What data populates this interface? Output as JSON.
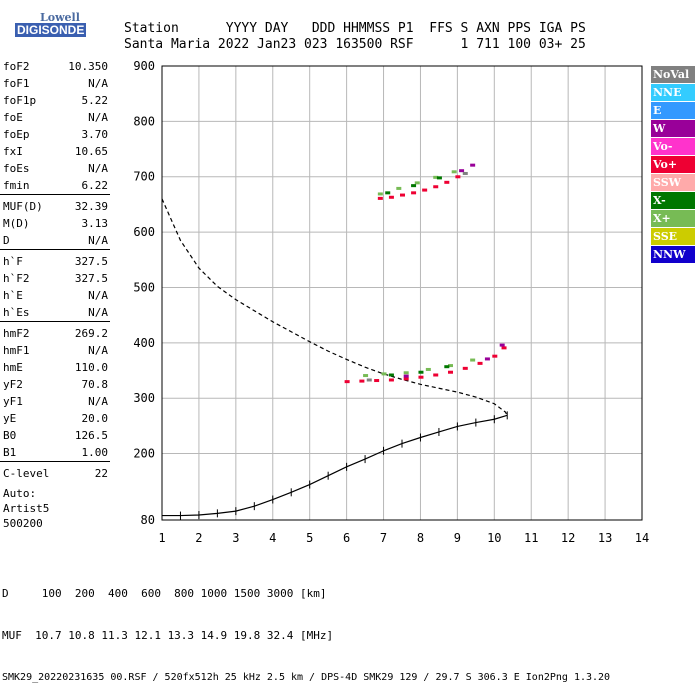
{
  "logo": {
    "line1": "Lowell",
    "line2": "DIGISONDE"
  },
  "header": {
    "line1": "Station      YYYY DAY   DDD HHMMSS P1  FFS S AXN PPS IGA PS",
    "line2": "Santa Maria 2022 Jan23 023 163500 RSF      1 711 100 03+ 25"
  },
  "params": [
    {
      "label": "foF2",
      "value": "10.350"
    },
    {
      "label": "foF1",
      "value": "N/A"
    },
    {
      "label": "foF1p",
      "value": "5.22"
    },
    {
      "label": "foE",
      "value": "N/A"
    },
    {
      "label": "foEp",
      "value": "3.70"
    },
    {
      "label": "fxI",
      "value": "10.65"
    },
    {
      "label": "foEs",
      "value": "N/A"
    },
    {
      "label": "fmin",
      "value": "6.22"
    },
    {
      "label": "MUF(D)",
      "value": "32.39"
    },
    {
      "label": "M(D)",
      "value": "3.13"
    },
    {
      "label": "D",
      "value": "N/A"
    },
    {
      "label": "h`F",
      "value": "327.5"
    },
    {
      "label": "h`F2",
      "value": "327.5"
    },
    {
      "label": "h`E",
      "value": "N/A"
    },
    {
      "label": "h`Es",
      "value": "N/A"
    },
    {
      "label": "hmF2",
      "value": "269.2"
    },
    {
      "label": "hmF1",
      "value": "N/A"
    },
    {
      "label": "hmE",
      "value": "110.0"
    },
    {
      "label": "yF2",
      "value": "70.8"
    },
    {
      "label": "yF1",
      "value": "N/A"
    },
    {
      "label": "yE",
      "value": "20.0"
    },
    {
      "label": "B0",
      "value": "126.5"
    },
    {
      "label": "B1",
      "value": "1.00"
    },
    {
      "label": "C-level",
      "value": "22"
    }
  ],
  "autoscale": {
    "line1": "Auto:",
    "line2": "Artist5",
    "line3": "500200"
  },
  "legend": [
    {
      "label": "NoVal",
      "color": "#808080"
    },
    {
      "label": "NNE",
      "color": "#33ccff"
    },
    {
      "label": "E",
      "color": "#3399ff"
    },
    {
      "label": "W",
      "color": "#990099"
    },
    {
      "label": "Vo-",
      "color": "#ff33cc"
    },
    {
      "label": "Vo+",
      "color": "#ee0033"
    },
    {
      "label": "SSW",
      "color": "#ffaaaa"
    },
    {
      "label": "X-",
      "color": "#007700"
    },
    {
      "label": "X+",
      "color": "#77bb55"
    },
    {
      "label": "SSE",
      "color": "#cccc00"
    },
    {
      "label": "NNW",
      "color": "#1100cc"
    }
  ],
  "footer": {
    "line1": "D     100  200  400  600  800 1000 1500 3000 [km]",
    "line2": "MUF  10.7 10.8 11.3 12.1 13.3 14.9 19.8 32.4 [MHz]",
    "line3": "SMK29_20220231635 00.RSF / 520fx512h 25 kHz 2.5 km / DPS-4D SMK29 129 / 29.7 S 306.3 E Ion2Png 1.3.20"
  },
  "chart_data": {
    "type": "scatter",
    "title": "",
    "xlabel": "",
    "ylabel": "",
    "xlim": [
      1,
      14
    ],
    "ylim": [
      80,
      900
    ],
    "x_ticks": [
      1,
      2,
      3,
      4,
      5,
      6,
      7,
      8,
      9,
      10,
      11,
      12,
      13,
      14
    ],
    "y_ticks": [
      80,
      200,
      300,
      400,
      500,
      600,
      700,
      800,
      900
    ],
    "grid": true,
    "series": [
      {
        "name": "X+",
        "color": "#77bb55",
        "points": [
          [
            6.9,
            668
          ],
          [
            7.4,
            678
          ],
          [
            7.9,
            688
          ],
          [
            8.4,
            698
          ],
          [
            8.9,
            708
          ],
          [
            6.5,
            340
          ],
          [
            7.0,
            343
          ],
          [
            7.6,
            345
          ],
          [
            8.2,
            351
          ],
          [
            8.8,
            358
          ],
          [
            9.4,
            368
          ]
        ]
      },
      {
        "name": "X-",
        "color": "#007700",
        "points": [
          [
            7.1,
            670
          ],
          [
            7.8,
            683
          ],
          [
            8.5,
            697
          ],
          [
            7.2,
            341
          ],
          [
            8.0,
            346
          ],
          [
            8.7,
            356
          ]
        ]
      },
      {
        "name": "Vo+",
        "color": "#ee0033",
        "points": [
          [
            6.9,
            660
          ],
          [
            7.2,
            662
          ],
          [
            7.5,
            666
          ],
          [
            7.8,
            670
          ],
          [
            8.1,
            675
          ],
          [
            8.4,
            681
          ],
          [
            8.7,
            689
          ],
          [
            9.0,
            699
          ],
          [
            6.0,
            329
          ],
          [
            6.4,
            330
          ],
          [
            6.8,
            331
          ],
          [
            7.2,
            332
          ],
          [
            7.6,
            334
          ],
          [
            8.0,
            337
          ],
          [
            8.4,
            341
          ],
          [
            8.8,
            346
          ],
          [
            9.2,
            353
          ],
          [
            9.6,
            362
          ],
          [
            10.0,
            375
          ],
          [
            10.25,
            390
          ]
        ]
      },
      {
        "name": "W",
        "color": "#990099",
        "points": [
          [
            9.1,
            710
          ],
          [
            9.4,
            720
          ],
          [
            7.6,
            339
          ],
          [
            9.8,
            370
          ],
          [
            10.2,
            395
          ]
        ]
      },
      {
        "name": "NoVal",
        "color": "#808080",
        "points": [
          [
            9.2,
            705
          ],
          [
            6.6,
            332
          ]
        ]
      }
    ],
    "profile_curve": {
      "color": "#000000",
      "style": "dashed",
      "points": [
        [
          1.0,
          660
        ],
        [
          1.5,
          585
        ],
        [
          2.0,
          535
        ],
        [
          2.5,
          502
        ],
        [
          3.0,
          478
        ],
        [
          3.5,
          458
        ],
        [
          4.0,
          438
        ],
        [
          4.5,
          420
        ],
        [
          5.0,
          402
        ],
        [
          5.5,
          385
        ],
        [
          6.0,
          370
        ],
        [
          6.5,
          356
        ],
        [
          7.0,
          344
        ],
        [
          7.5,
          334
        ],
        [
          8.0,
          325
        ],
        [
          8.5,
          318
        ],
        [
          9.0,
          311
        ],
        [
          9.5,
          302
        ],
        [
          10.0,
          290
        ],
        [
          10.3,
          275
        ],
        [
          10.35,
          269
        ]
      ]
    },
    "trace_curve": {
      "color": "#000000",
      "style": "solid",
      "points": [
        [
          1.0,
          88
        ],
        [
          1.5,
          88
        ],
        [
          2.0,
          89
        ],
        [
          2.5,
          92
        ],
        [
          3.0,
          96
        ],
        [
          3.5,
          105
        ],
        [
          4.0,
          117
        ],
        [
          4.5,
          130
        ],
        [
          5.0,
          144
        ],
        [
          5.5,
          160
        ],
        [
          6.0,
          176
        ],
        [
          6.5,
          190
        ],
        [
          7.0,
          205
        ],
        [
          7.5,
          218
        ],
        [
          8.0,
          229
        ],
        [
          8.5,
          239
        ],
        [
          9.0,
          249
        ],
        [
          9.5,
          256
        ],
        [
          10.0,
          262
        ],
        [
          10.35,
          269
        ]
      ]
    }
  }
}
